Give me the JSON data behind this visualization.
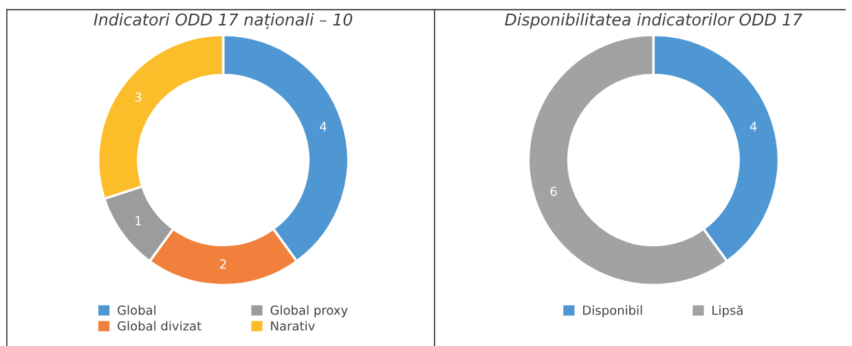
{
  "chart_data": [
    {
      "type": "donut",
      "title": "Indicatori ODD 17 naționali – 10",
      "categories": [
        "Global",
        "Global divizat",
        "Global proxy",
        "Narativ"
      ],
      "values": [
        4,
        2,
        1,
        3
      ],
      "colors": [
        "#4f97d2",
        "#f0803c",
        "#9a9c9d",
        "#fbbd2a"
      ],
      "data_labels": true,
      "legend": "bottom"
    },
    {
      "type": "donut",
      "title": "Disponibilitatea indicatorilor ODD 17",
      "categories": [
        "Disponibil",
        "Lipsă"
      ],
      "values": [
        4,
        6
      ],
      "colors": [
        "#4f97d2",
        "#a2a2a2"
      ],
      "data_labels": true,
      "legend": "bottom"
    }
  ]
}
